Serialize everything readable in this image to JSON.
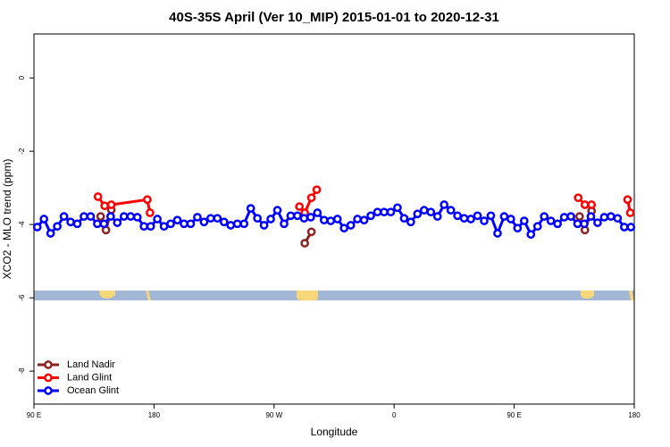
{
  "chart_data": {
    "type": "line",
    "title": "40S-35S April (Ver 10_MIP)   2015-01-01 to 2020-12-31",
    "x_label": "Longitude",
    "y_label": "XCO2 - MLO trend (ppm)",
    "xlim": [
      90,
      540
    ],
    "ylim": [
      -8.9,
      1.2
    ],
    "xticks": [
      {
        "value": 90,
        "label": "90 E"
      },
      {
        "value": 180,
        "label": "180"
      },
      {
        "value": 270,
        "label": "90 W"
      },
      {
        "value": 360,
        "label": "0"
      },
      {
        "value": 450,
        "label": "90 E"
      },
      {
        "value": 540,
        "label": "180"
      }
    ],
    "yticks": [
      -8,
      -6,
      -4,
      -2,
      0
    ],
    "legend": "bottom-left",
    "series": [
      {
        "name": "Land Nadir",
        "color": "#8b2323",
        "x": [
          140,
          144,
          148,
          null,
          293,
          298,
          null,
          499,
          503,
          508
        ],
        "values": [
          -3.78,
          -4.15,
          -3.6,
          null,
          -4.51,
          -4.2,
          null,
          -3.78,
          -4.15,
          -3.63
        ]
      },
      {
        "name": "Land Glint",
        "color": "#ff0000",
        "x": [
          138,
          143,
          148,
          175,
          177,
          null,
          289,
          293,
          298,
          302,
          null,
          498,
          503,
          508,
          null,
          535,
          537
        ],
        "values": [
          -3.24,
          -3.49,
          -3.46,
          -3.32,
          -3.68,
          null,
          -3.51,
          -3.68,
          -3.27,
          -3.05,
          null,
          -3.27,
          -3.46,
          -3.46,
          null,
          -3.32,
          -3.68
        ]
      },
      {
        "name": "Ocean Glint",
        "color": "#0000ff",
        "x": [
          92.5,
          97.5,
          102.5,
          107.5,
          112.5,
          117.5,
          122.5,
          127.5,
          132.5,
          137.5,
          142.5,
          147.5,
          152.5,
          157.5,
          162.5,
          167.5,
          172.5,
          177.5,
          182.5,
          187.5,
          192.5,
          197.5,
          202.5,
          207.5,
          212.5,
          217.5,
          222.5,
          227.5,
          232.5,
          237.5,
          242.5,
          247.5,
          252.5,
          257.5,
          262.5,
          267.5,
          272.5,
          277.5,
          282.5,
          287.5,
          292.5,
          297.5,
          302.5,
          307.5,
          312.5,
          317.5,
          322.5,
          327.5,
          332.5,
          337.5,
          342.5,
          347.5,
          352.5,
          357.5,
          362.5,
          367.5,
          372.5,
          377.5,
          382.5,
          387.5,
          392.5,
          397.5,
          402.5,
          407.5,
          412.5,
          417.5,
          422.5,
          427.5,
          432.5,
          437.5,
          442.5,
          447.5,
          452.5,
          457.5,
          462.5,
          467.5,
          472.5,
          477.5,
          482.5,
          487.5,
          492.5,
          497.5,
          502.5,
          507.5,
          512.5,
          517.5,
          522.5,
          527.5,
          532.5,
          537.5
        ],
        "values": [
          -4.07,
          -3.85,
          -4.24,
          -4.05,
          -3.78,
          -3.93,
          -3.98,
          -3.78,
          -3.78,
          -3.98,
          -3.98,
          -3.78,
          -3.95,
          -3.78,
          -3.78,
          -3.8,
          -4.05,
          -4.05,
          -3.85,
          -4.05,
          -3.98,
          -3.88,
          -3.98,
          -3.98,
          -3.8,
          -3.93,
          -3.83,
          -3.83,
          -3.93,
          -4.02,
          -3.98,
          -3.98,
          -3.56,
          -3.83,
          -4.02,
          -3.85,
          -3.61,
          -3.98,
          -3.76,
          -3.76,
          -3.83,
          -3.8,
          -3.68,
          -3.88,
          -3.9,
          -3.85,
          -4.1,
          -4.02,
          -3.85,
          -3.88,
          -3.76,
          -3.66,
          -3.66,
          -3.66,
          -3.54,
          -3.83,
          -3.93,
          -3.71,
          -3.61,
          -3.66,
          -3.78,
          -3.46,
          -3.61,
          -3.76,
          -3.83,
          -3.85,
          -3.76,
          -3.9,
          -3.76,
          -4.24,
          -3.78,
          -3.85,
          -4.1,
          -3.9,
          -4.27,
          -4.05,
          -3.78,
          -3.9,
          -3.98,
          -3.8,
          -3.78,
          -3.98,
          -3.98,
          -3.78,
          -3.95,
          -3.8,
          -3.78,
          -3.83,
          -4.07,
          -4.07
        ]
      }
    ]
  }
}
